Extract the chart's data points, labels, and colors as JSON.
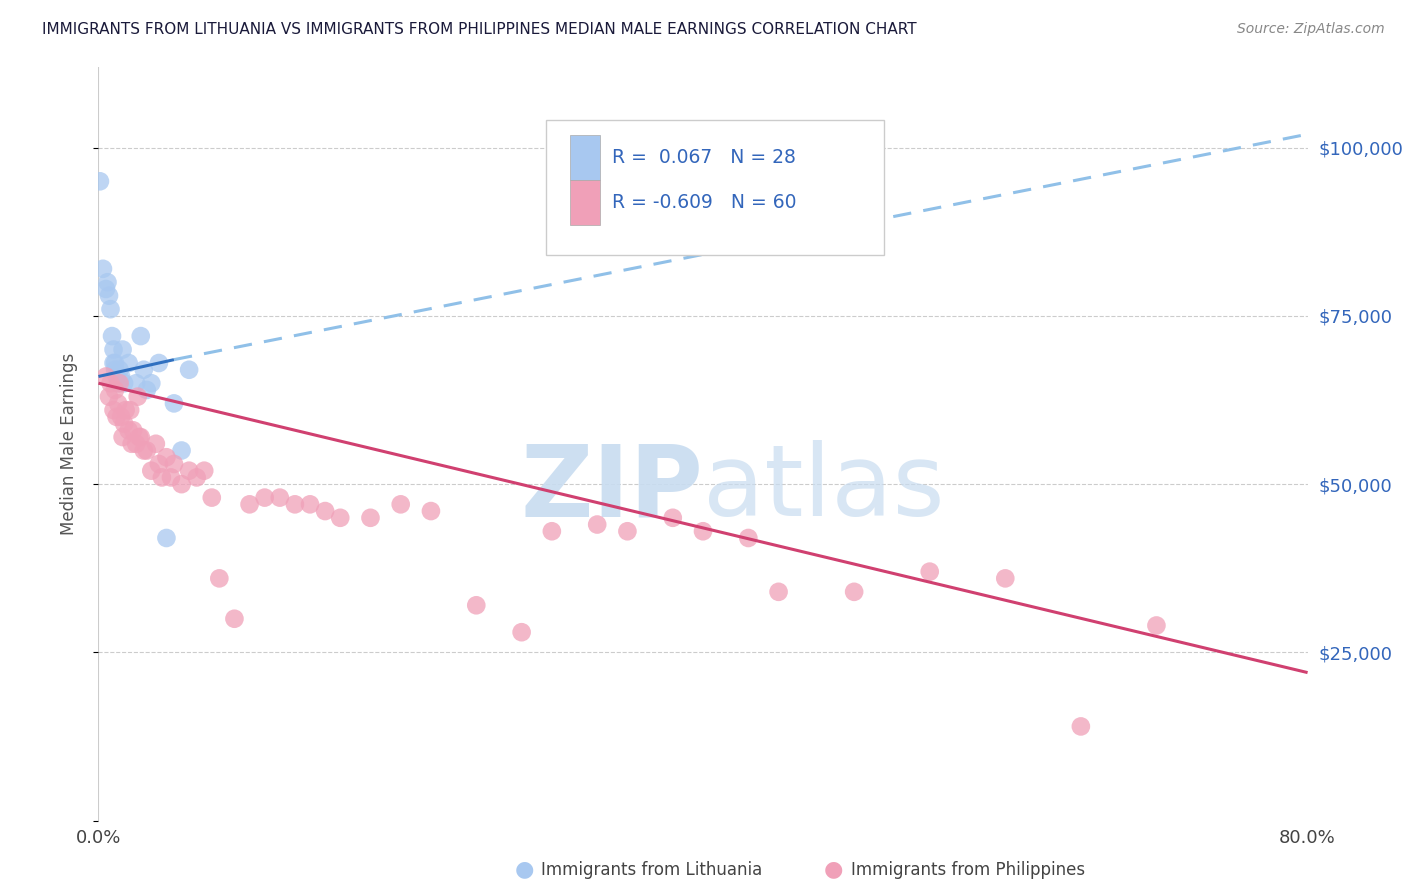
{
  "title": "IMMIGRANTS FROM LITHUANIA VS IMMIGRANTS FROM PHILIPPINES MEDIAN MALE EARNINGS CORRELATION CHART",
  "source": "Source: ZipAtlas.com",
  "ylabel": "Median Male Earnings",
  "r_lithuania": 0.067,
  "n_lithuania": 28,
  "r_philippines": -0.609,
  "n_philippines": 60,
  "watermark_zip": "ZIP",
  "watermark_atlas": "atlas",
  "lithuania_color": "#A8C8F0",
  "philippines_color": "#F0A0B8",
  "trend_line_color_blue": "#3070C0",
  "trend_line_color_pink": "#D04070",
  "trend_dashed_color": "#90C0E8",
  "background_color": "#FFFFFF",
  "legend_color": "#3366BB",
  "lithuania_x": [
    0.1,
    0.3,
    0.5,
    0.6,
    0.7,
    0.8,
    0.9,
    1.0,
    1.0,
    1.1,
    1.1,
    1.2,
    1.3,
    1.4,
    1.5,
    1.6,
    1.7,
    2.0,
    2.5,
    2.8,
    3.0,
    3.2,
    3.5,
    4.0,
    4.5,
    5.0,
    5.5,
    6.0
  ],
  "lithuania_y": [
    95000,
    82000,
    79000,
    80000,
    78000,
    76000,
    72000,
    70000,
    68000,
    68000,
    67000,
    66000,
    65000,
    67000,
    66000,
    70000,
    65000,
    68000,
    65000,
    72000,
    67000,
    64000,
    65000,
    68000,
    42000,
    62000,
    55000,
    67000
  ],
  "philippines_x": [
    0.5,
    0.7,
    0.8,
    1.0,
    1.1,
    1.2,
    1.3,
    1.4,
    1.5,
    1.6,
    1.7,
    1.8,
    2.0,
    2.1,
    2.2,
    2.3,
    2.5,
    2.6,
    2.7,
    2.8,
    3.0,
    3.2,
    3.5,
    3.8,
    4.0,
    4.2,
    4.5,
    4.8,
    5.0,
    5.5,
    6.0,
    6.5,
    7.0,
    7.5,
    8.0,
    9.0,
    10.0,
    11.0,
    12.0,
    13.0,
    14.0,
    15.0,
    16.0,
    18.0,
    20.0,
    22.0,
    25.0,
    28.0,
    30.0,
    33.0,
    35.0,
    38.0,
    40.0,
    43.0,
    45.0,
    50.0,
    55.0,
    60.0,
    65.0,
    70.0
  ],
  "philippines_y": [
    66000,
    63000,
    65000,
    61000,
    64000,
    60000,
    62000,
    65000,
    60000,
    57000,
    59000,
    61000,
    58000,
    61000,
    56000,
    58000,
    56000,
    63000,
    57000,
    57000,
    55000,
    55000,
    52000,
    56000,
    53000,
    51000,
    54000,
    51000,
    53000,
    50000,
    52000,
    51000,
    52000,
    48000,
    36000,
    30000,
    47000,
    48000,
    48000,
    47000,
    47000,
    46000,
    45000,
    45000,
    47000,
    46000,
    32000,
    28000,
    43000,
    44000,
    43000,
    45000,
    43000,
    42000,
    34000,
    34000,
    37000,
    36000,
    14000,
    29000
  ],
  "trend_lith_x0": 0.0,
  "trend_lith_y0": 66000,
  "trend_lith_x1": 5.0,
  "trend_lith_y1": 68500,
  "trend_lith_dash_x0": 5.0,
  "trend_lith_dash_y0": 68500,
  "trend_lith_dash_x1": 80.0,
  "trend_lith_dash_y1": 102000,
  "trend_phil_x0": 0.0,
  "trend_phil_y0": 65000,
  "trend_phil_x1": 80.0,
  "trend_phil_y1": 22000,
  "xlim": [
    0,
    80
  ],
  "ylim": [
    0,
    112000
  ],
  "yticks": [
    25000,
    50000,
    75000,
    100000
  ],
  "ytick_labels": [
    "$25,000",
    "$50,000",
    "$75,000",
    "$100,000"
  ]
}
